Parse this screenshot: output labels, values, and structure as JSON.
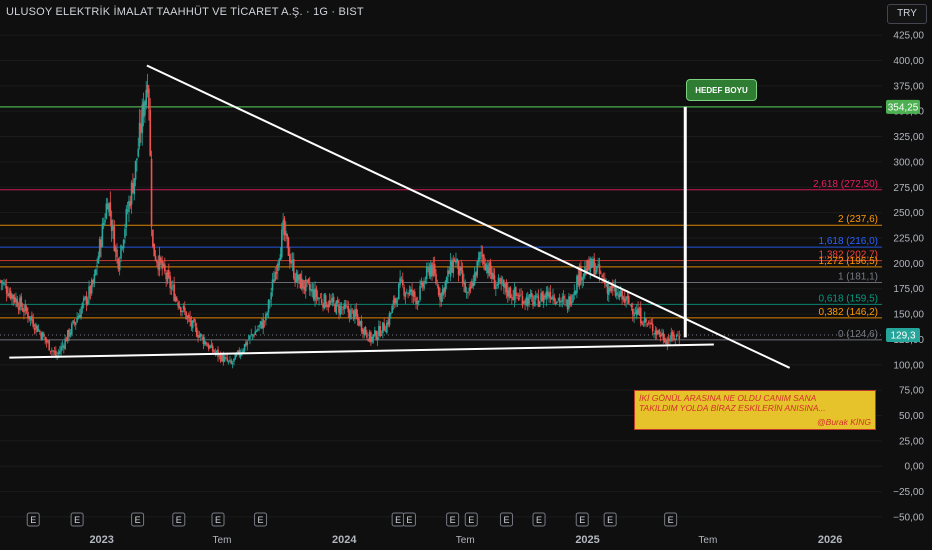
{
  "header": {
    "title": "ULUSOY ELEKTRİK İMALAT TAAHHÜT VE TİCARET A.Ş. · 1G · BIST",
    "currency_button": "TRY"
  },
  "annotations": {
    "target_label": "HEDEF BOYU",
    "note_line1": "İKİ GÖNÜL ARASINA NE OLDU CANIM SANA",
    "note_line2": "TAKILDIM YOLDA BİRAZ ESKİLERİN ANISINA...",
    "signature": "@Burak KİNG"
  },
  "colors": {
    "background": "#0f0f0f",
    "candle_up": "#26a69a",
    "candle_down": "#ef5350",
    "trendline": "#ffffff",
    "target_line": "#4caf50",
    "price_badge": "#26a69a"
  },
  "chart_data": {
    "type": "candlestick",
    "y_axis": {
      "ticks": [
        "425,00",
        "400,00",
        "375,00",
        "350,00",
        "325,00",
        "300,00",
        "275,00",
        "250,00",
        "225,00",
        "200,00",
        "175,00",
        "150,00",
        "125,00",
        "100,00",
        "75,00",
        "50,00",
        "25,00",
        "0,00",
        "−25,00",
        "−50,00"
      ],
      "tick_values": [
        425,
        400,
        375,
        350,
        325,
        300,
        275,
        250,
        225,
        200,
        175,
        150,
        125,
        100,
        75,
        50,
        25,
        0,
        -25,
        -50
      ],
      "range": [
        -55,
        432
      ]
    },
    "x_axis": {
      "labels": [
        "2023",
        "Tem",
        "2024",
        "Tem",
        "2025",
        "Tem",
        "2026"
      ],
      "dates": [
        "2023-01-01",
        "2023-07-01",
        "2024-01-01",
        "2024-07-01",
        "2025-01-01",
        "2025-07-01",
        "2026-01-01"
      ],
      "range": [
        "2022-08-01",
        "2026-03-20"
      ]
    },
    "earnings_markers": [
      "2022-09-20",
      "2022-11-25",
      "2023-02-24",
      "2023-04-27",
      "2023-06-25",
      "2023-08-28",
      "2024-03-22",
      "2024-04-08",
      "2024-06-12",
      "2024-07-10",
      "2024-09-01",
      "2024-10-20",
      "2024-12-24",
      "2025-02-04",
      "2025-05-06"
    ],
    "earnings_label": "E",
    "fib_levels": [
      {
        "label": "2,618 (272,50)",
        "value": 272.5,
        "color": "#e91e63"
      },
      {
        "label": "2 (237,6)",
        "value": 237.6,
        "color": "#ff9800"
      },
      {
        "label": "1,618 (216,0)",
        "value": 216.0,
        "color": "#2962ff"
      },
      {
        "label": "1,382 (202,7)",
        "value": 202.7,
        "color": "#f44336"
      },
      {
        "label": "1,272 (196,5)",
        "value": 196.5,
        "color": "#ff9800"
      },
      {
        "label": "1 (181,1)",
        "value": 181.1,
        "color": "#787b86"
      },
      {
        "label": "0,618 (159,5)",
        "value": 159.5,
        "color": "#089981"
      },
      {
        "label": "0,382 (146,2)",
        "value": 146.2,
        "color": "#ff9800"
      },
      {
        "label": "0 (124,6)",
        "value": 124.6,
        "color": "#787b86"
      }
    ],
    "target_value": 354.25,
    "target_label": "354,25",
    "last_price": 129.3,
    "last_price_label": "129,3",
    "trendlines": [
      {
        "from": {
          "date": "2023-03-10",
          "value": 395
        },
        "to": {
          "date": "2025-11-01",
          "value": 97
        }
      },
      {
        "from": {
          "date": "2022-08-15",
          "value": 107
        },
        "to": {
          "date": "2025-07-10",
          "value": 120
        }
      }
    ],
    "target_measure": {
      "date": "2025-05-28",
      "from": 127,
      "to": 354.25
    },
    "swing_points": [
      {
        "date": "2022-08-01",
        "value": 183
      },
      {
        "date": "2022-09-12",
        "value": 150
      },
      {
        "date": "2022-10-25",
        "value": 108
      },
      {
        "date": "2022-11-20",
        "value": 140
      },
      {
        "date": "2022-12-20",
        "value": 180
      },
      {
        "date": "2023-01-10",
        "value": 265
      },
      {
        "date": "2023-01-25",
        "value": 200
      },
      {
        "date": "2023-02-20",
        "value": 290
      },
      {
        "date": "2023-03-12",
        "value": 390
      },
      {
        "date": "2023-03-18",
        "value": 215
      },
      {
        "date": "2023-04-20",
        "value": 170
      },
      {
        "date": "2023-05-15",
        "value": 140
      },
      {
        "date": "2023-06-15",
        "value": 115
      },
      {
        "date": "2023-07-15",
        "value": 100
      },
      {
        "date": "2023-08-10",
        "value": 125
      },
      {
        "date": "2023-09-05",
        "value": 145
      },
      {
        "date": "2023-10-01",
        "value": 232
      },
      {
        "date": "2023-10-20",
        "value": 185
      },
      {
        "date": "2023-11-25",
        "value": 165
      },
      {
        "date": "2024-01-15",
        "value": 150
      },
      {
        "date": "2024-02-10",
        "value": 125
      },
      {
        "date": "2024-03-05",
        "value": 140
      },
      {
        "date": "2024-03-25",
        "value": 178
      },
      {
        "date": "2024-04-20",
        "value": 165
      },
      {
        "date": "2024-05-10",
        "value": 198
      },
      {
        "date": "2024-05-25",
        "value": 168
      },
      {
        "date": "2024-06-15",
        "value": 205
      },
      {
        "date": "2024-07-05",
        "value": 165
      },
      {
        "date": "2024-07-25",
        "value": 210
      },
      {
        "date": "2024-08-15",
        "value": 180
      },
      {
        "date": "2024-09-15",
        "value": 168
      },
      {
        "date": "2024-10-15",
        "value": 162
      },
      {
        "date": "2024-11-05",
        "value": 172
      },
      {
        "date": "2024-12-01",
        "value": 158
      },
      {
        "date": "2024-12-20",
        "value": 190
      },
      {
        "date": "2025-01-10",
        "value": 198
      },
      {
        "date": "2025-02-01",
        "value": 176
      },
      {
        "date": "2025-03-05",
        "value": 160
      },
      {
        "date": "2025-04-01",
        "value": 140
      },
      {
        "date": "2025-05-01",
        "value": 125
      },
      {
        "date": "2025-05-20",
        "value": 129.3
      }
    ]
  }
}
